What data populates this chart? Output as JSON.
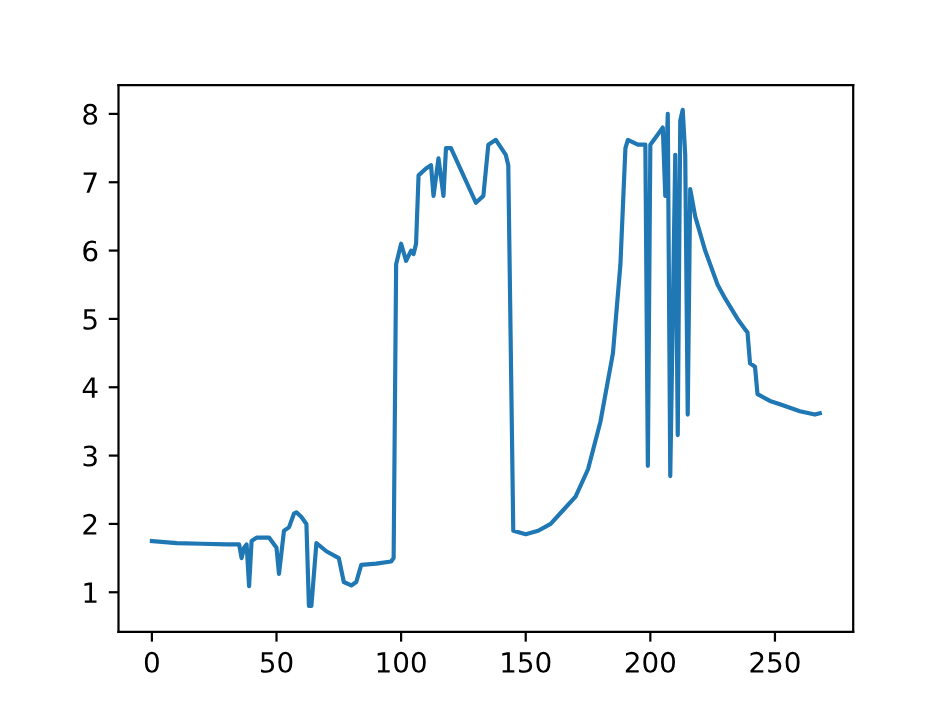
{
  "chart_data": {
    "type": "line",
    "x": [
      0,
      10,
      20,
      30,
      35,
      36,
      37,
      38,
      39,
      40,
      42,
      47,
      50,
      51,
      53,
      55,
      57,
      58,
      60,
      62,
      63,
      64,
      66,
      70,
      75,
      77,
      80,
      82,
      84,
      90,
      96,
      97,
      98,
      100,
      102,
      104,
      105,
      106,
      107,
      110,
      112,
      113,
      115,
      117,
      118,
      120,
      130,
      133,
      135,
      138,
      142,
      143,
      145,
      150,
      155,
      160,
      165,
      170,
      175,
      180,
      185,
      188,
      190,
      191,
      195,
      198,
      199,
      200,
      203,
      205,
      206,
      207,
      208,
      210,
      211,
      212,
      213,
      214,
      215,
      216,
      218,
      222,
      227,
      230,
      235,
      238,
      239,
      240,
      242,
      243,
      248,
      252,
      256,
      260,
      266,
      268
    ],
    "series": [
      {
        "color": "#1f77b4",
        "values": [
          1.75,
          1.72,
          1.71,
          1.7,
          1.7,
          1.5,
          1.65,
          1.7,
          1.09,
          1.75,
          1.8,
          1.8,
          1.65,
          1.27,
          1.9,
          1.95,
          2.15,
          2.17,
          2.1,
          2.0,
          0.8,
          0.8,
          1.72,
          1.6,
          1.5,
          1.15,
          1.1,
          1.15,
          1.4,
          1.42,
          1.45,
          1.5,
          5.8,
          6.1,
          5.85,
          6.0,
          5.95,
          6.1,
          7.1,
          7.2,
          7.25,
          6.8,
          7.35,
          6.8,
          7.5,
          7.5,
          6.7,
          6.8,
          7.55,
          7.62,
          7.4,
          7.25,
          1.9,
          1.85,
          1.9,
          2.0,
          2.2,
          2.4,
          2.8,
          3.5,
          4.5,
          5.8,
          7.5,
          7.62,
          7.55,
          7.55,
          2.85,
          7.55,
          7.7,
          7.8,
          6.8,
          8.0,
          2.7,
          7.4,
          3.3,
          7.9,
          8.06,
          7.4,
          3.6,
          6.9,
          6.5,
          6.0,
          5.5,
          5.3,
          5.0,
          4.85,
          4.8,
          4.35,
          4.3,
          3.9,
          3.8,
          3.75,
          3.7,
          3.65,
          3.6,
          3.62
        ]
      }
    ],
    "xlim": [
      -13.4,
      281.4
    ],
    "ylim": [
      0.42,
      8.42
    ],
    "xticks": [
      0,
      50,
      100,
      150,
      200,
      250
    ],
    "yticks": [
      1,
      2,
      3,
      4,
      5,
      6,
      7,
      8
    ],
    "grid": false,
    "legend": false
  }
}
